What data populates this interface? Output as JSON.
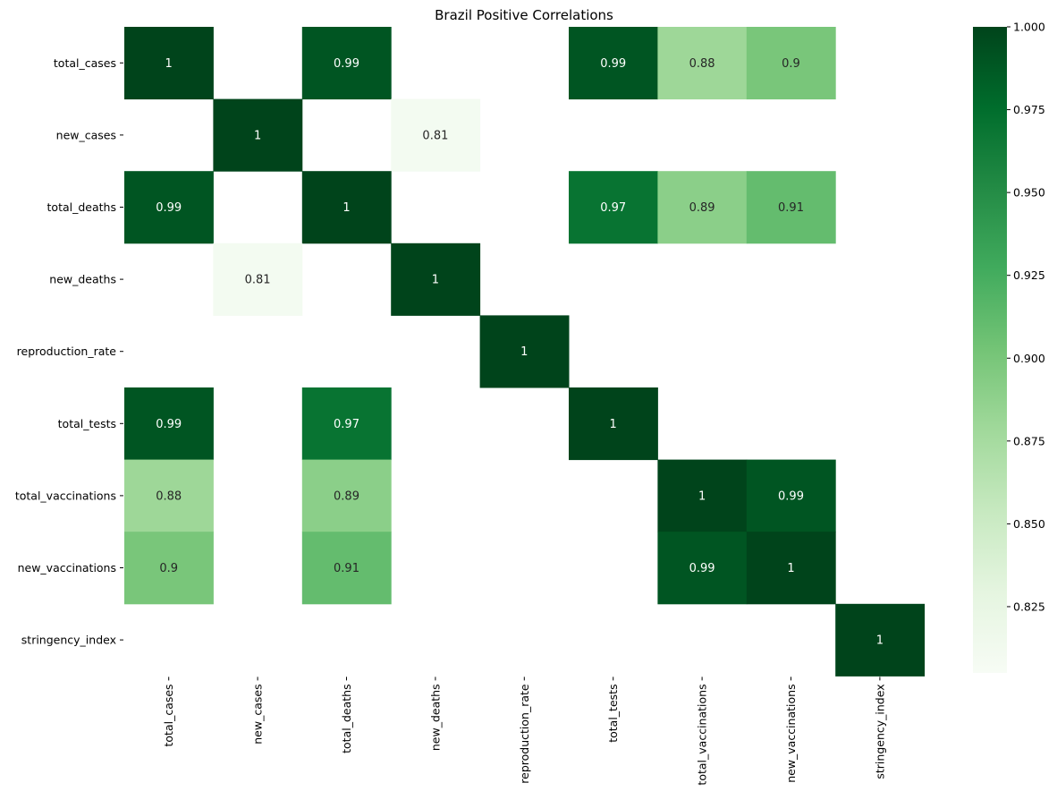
{
  "chart_data": {
    "type": "heatmap",
    "title": "Brazil Positive Correlations",
    "variables": [
      "total_cases",
      "new_cases",
      "total_deaths",
      "new_deaths",
      "reproduction_rate",
      "total_tests",
      "total_vaccinations",
      "new_vaccinations",
      "stringency_index"
    ],
    "matrix": [
      [
        1,
        null,
        0.99,
        null,
        null,
        0.99,
        0.88,
        0.9,
        null
      ],
      [
        null,
        1,
        null,
        0.81,
        null,
        null,
        null,
        null,
        null
      ],
      [
        0.99,
        null,
        1,
        null,
        null,
        0.97,
        0.89,
        0.91,
        null
      ],
      [
        null,
        0.81,
        null,
        1,
        null,
        null,
        null,
        null,
        null
      ],
      [
        null,
        null,
        null,
        null,
        1,
        null,
        null,
        null,
        null
      ],
      [
        0.99,
        null,
        0.97,
        null,
        null,
        1,
        null,
        null,
        null
      ],
      [
        0.88,
        null,
        0.89,
        null,
        null,
        null,
        1,
        0.99,
        null
      ],
      [
        0.9,
        null,
        0.91,
        null,
        null,
        null,
        0.99,
        1,
        null
      ],
      [
        null,
        null,
        null,
        null,
        null,
        null,
        null,
        null,
        1
      ]
    ],
    "colorbar": {
      "min": 0.805,
      "max": 1.0,
      "ticks": [
        1.0,
        0.975,
        0.95,
        0.925,
        0.9,
        0.875,
        0.85,
        0.825
      ],
      "tick_labels": [
        "1.000",
        "0.975",
        "0.950",
        "0.925",
        "0.900",
        "0.875",
        "0.850",
        "0.825"
      ],
      "colormap": "Greens",
      "colors": [
        "#f7fcf5",
        "#e5f5e0",
        "#c7e9c0",
        "#a1d99b",
        "#74c476",
        "#41ab5d",
        "#238b45",
        "#006d2c",
        "#00441b"
      ]
    },
    "legend": "right"
  }
}
